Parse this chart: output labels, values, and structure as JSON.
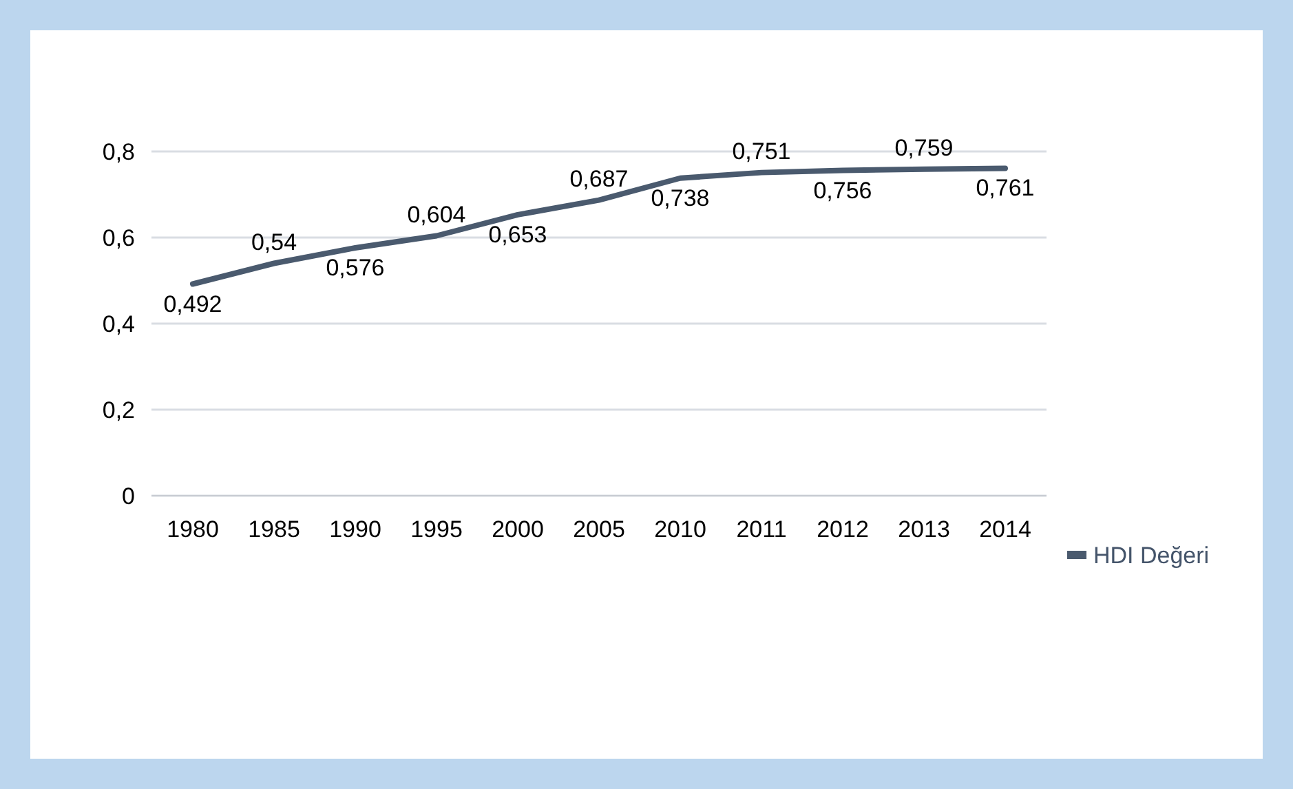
{
  "chart_data": {
    "type": "line",
    "categories": [
      "1980",
      "1985",
      "1990",
      "1995",
      "2000",
      "2005",
      "2010",
      "2011",
      "2012",
      "2013",
      "2014"
    ],
    "series": [
      {
        "name": "HDI Değeri",
        "color": "#4a5a6e",
        "values": [
          0.492,
          0.54,
          0.576,
          0.604,
          0.653,
          0.687,
          0.738,
          0.751,
          0.756,
          0.759,
          0.761
        ],
        "value_labels": [
          "0,492",
          "0,54",
          "0,576",
          "0,604",
          "0,653",
          "0,687",
          "0,738",
          "0,751",
          "0,756",
          "0,759",
          "0,761"
        ]
      }
    ],
    "ylim": [
      0,
      0.8
    ],
    "yticks": [
      {
        "value": 0,
        "label": "0"
      },
      {
        "value": 0.2,
        "label": "0,2"
      },
      {
        "value": 0.4,
        "label": "0,4"
      },
      {
        "value": 0.6,
        "label": "0,6"
      },
      {
        "value": 0.8,
        "label": "0,8"
      }
    ],
    "grid": "y",
    "legend": "right",
    "marker": "none",
    "line_style": "solid"
  }
}
